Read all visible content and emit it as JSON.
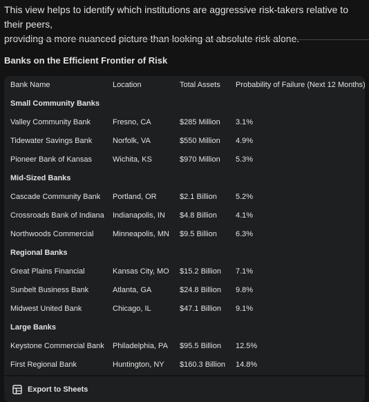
{
  "intro": {
    "line1": "This view helps to identify which institutions are aggressive risk-takers relative to their peers,",
    "line2": "providing a more nuanced picture than looking at absolute risk alone."
  },
  "section": {
    "title": "Banks on the Efficient Frontier of Risk"
  },
  "table": {
    "headers": [
      "Bank Name",
      "Location",
      "Total Assets",
      "Probability of Failure (Next 12 Months)"
    ],
    "groups": [
      {
        "name": "Small Community Banks",
        "rows": [
          [
            "Valley Community Bank",
            "Fresno, CA",
            "$285 Million",
            "3.1%"
          ],
          [
            "Tidewater Savings Bank",
            "Norfolk, VA",
            "$550 Million",
            "4.9%"
          ],
          [
            "Pioneer Bank of Kansas",
            "Wichita, KS",
            "$970 Million",
            "5.3%"
          ]
        ]
      },
      {
        "name": "Mid-Sized Banks",
        "rows": [
          [
            "Cascade Community Bank",
            "Portland, OR",
            "$2.1 Billion",
            "5.2%"
          ],
          [
            "Crossroads Bank of Indiana",
            "Indianapolis, IN",
            "$4.8 Billion",
            "4.1%"
          ],
          [
            "Northwoods Commercial",
            "Minneapolis, MN",
            "$9.5 Billion",
            "6.3%"
          ]
        ]
      },
      {
        "name": "Regional Banks",
        "rows": [
          [
            "Great Plains Financial",
            "Kansas City, MO",
            "$15.2 Billion",
            "7.1%"
          ],
          [
            "Sunbelt Business Bank",
            "Atlanta, GA",
            "$24.8 Billion",
            "9.8%"
          ],
          [
            "Midwest United Bank",
            "Chicago, IL",
            "$47.1 Billion",
            "9.1%"
          ]
        ]
      },
      {
        "name": "Large Banks",
        "rows": [
          [
            "Keystone Commercial Bank",
            "Philadelphia, PA",
            "$95.5 Billion",
            "12.5%"
          ],
          [
            "First Regional Bank",
            "Huntington, NY",
            "$160.3 Billion",
            "14.8%"
          ]
        ]
      }
    ]
  },
  "footer": {
    "export_label": "Export to Sheets",
    "export_icon": "sheets-icon"
  }
}
